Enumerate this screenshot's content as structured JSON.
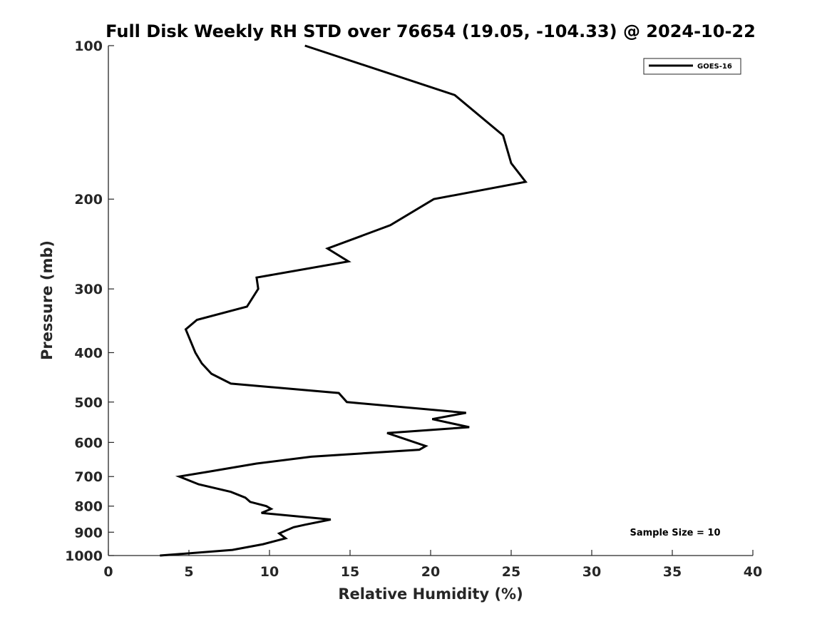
{
  "chart_data": {
    "type": "line",
    "title": "Full Disk Weekly RH STD over 76654 (19.05, -104.33) @ 2024-10-22",
    "xlabel": "Relative Humidity (%)",
    "ylabel": "Pressure (mb)",
    "xlim": [
      0,
      40
    ],
    "ylim": [
      100,
      1000
    ],
    "y_scale": "log",
    "y_reversed": true,
    "grid": false,
    "legend_position": "top-right",
    "x_ticks": [
      "0",
      "5",
      "10",
      "15",
      "20",
      "25",
      "30",
      "35",
      "40"
    ],
    "y_ticks": [
      "100",
      "200",
      "300",
      "400",
      "500",
      "600",
      "700",
      "800",
      "900",
      "1000"
    ],
    "annotation": "Sample Size = 10",
    "series": [
      {
        "name": "GOES-16",
        "color": "#000000",
        "points": [
          [
            12.2,
            100
          ],
          [
            21.5,
            125
          ],
          [
            24.5,
            150
          ],
          [
            25.0,
            170
          ],
          [
            25.9,
            185
          ],
          [
            20.2,
            200
          ],
          [
            17.5,
            225
          ],
          [
            13.6,
            250
          ],
          [
            14.9,
            265
          ],
          [
            9.2,
            285
          ],
          [
            9.3,
            300
          ],
          [
            8.6,
            325
          ],
          [
            5.5,
            345
          ],
          [
            4.8,
            360
          ],
          [
            5.4,
            400
          ],
          [
            5.8,
            420
          ],
          [
            6.4,
            440
          ],
          [
            7.6,
            460
          ],
          [
            14.3,
            480
          ],
          [
            14.8,
            500
          ],
          [
            22.2,
            525
          ],
          [
            20.1,
            540
          ],
          [
            22.4,
            560
          ],
          [
            17.3,
            575
          ],
          [
            19.7,
            610
          ],
          [
            19.3,
            620
          ],
          [
            12.6,
            640
          ],
          [
            9.2,
            660
          ],
          [
            6.2,
            685
          ],
          [
            4.4,
            700
          ],
          [
            5.6,
            725
          ],
          [
            7.6,
            750
          ],
          [
            8.5,
            770
          ],
          [
            8.8,
            785
          ],
          [
            9.8,
            800
          ],
          [
            10.1,
            810
          ],
          [
            9.5,
            825
          ],
          [
            13.8,
            850
          ],
          [
            12.2,
            870
          ],
          [
            11.5,
            880
          ],
          [
            10.6,
            905
          ],
          [
            11.0,
            925
          ],
          [
            9.6,
            950
          ],
          [
            7.7,
            975
          ],
          [
            3.2,
            1000
          ]
        ]
      }
    ]
  }
}
